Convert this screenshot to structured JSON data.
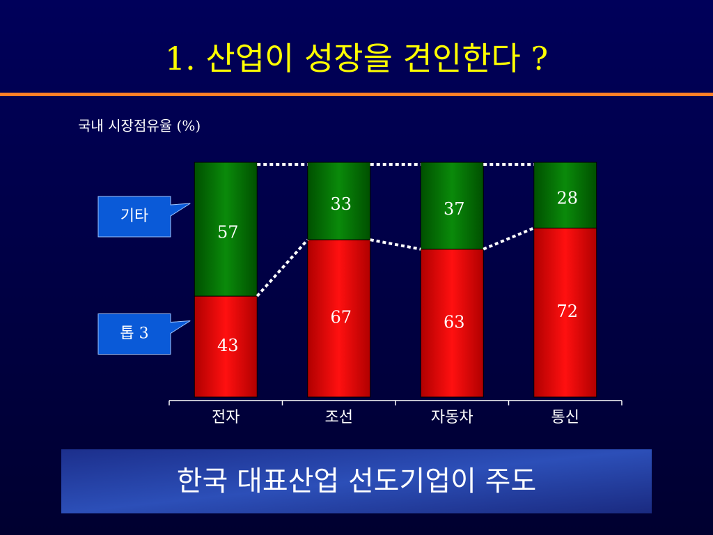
{
  "chart_data": {
    "type": "stacked_bar",
    "title": "1. 산업이 성장을 견인한다 ?",
    "y_label": "국내 시장점유율 (%)",
    "categories": [
      "전자",
      "조선",
      "자동차",
      "통신"
    ],
    "series": [
      {
        "name": "톱 3",
        "color": "#ff0000",
        "values": [
          43,
          67,
          63,
          72
        ]
      },
      {
        "name": "기타",
        "color": "#008000",
        "values": [
          57,
          33,
          37,
          28
        ]
      }
    ],
    "ylim": [
      0,
      100
    ],
    "footer": "한국 대표산업 선도기업이 주도"
  }
}
